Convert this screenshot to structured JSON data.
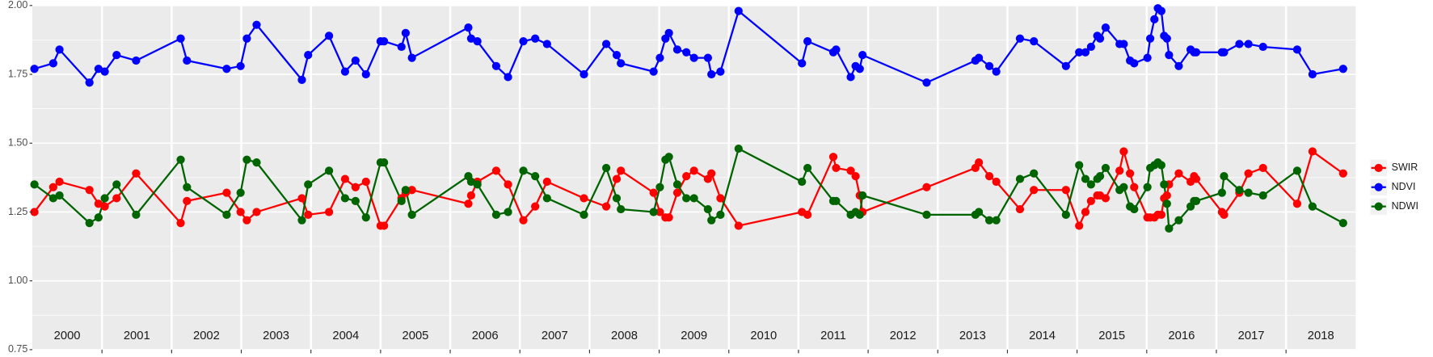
{
  "chart_data": {
    "type": "line",
    "x": [
      2000.03,
      2000.3,
      2000.39,
      2000.82,
      2000.95,
      2001.04,
      2001.21,
      2001.49,
      2002.13,
      2002.22,
      2002.79,
      2002.99,
      2003.08,
      2003.22,
      2003.87,
      2003.96,
      2004.26,
      2004.49,
      2004.64,
      2004.79,
      2005.0,
      2005.05,
      2005.3,
      2005.36,
      2005.45,
      2006.26,
      2006.3,
      2006.39,
      2006.66,
      2006.83,
      2007.05,
      2007.22,
      2007.39,
      2007.92,
      2008.24,
      2008.39,
      2008.45,
      2008.92,
      2009.01,
      2009.09,
      2009.14,
      2009.26,
      2009.39,
      2009.5,
      2009.7,
      2009.75,
      2009.88,
      2010.14,
      2011.05,
      2011.13,
      2011.5,
      2011.54,
      2011.75,
      2011.82,
      2011.88,
      2011.92,
      2012.84,
      2013.54,
      2013.59,
      2013.74,
      2013.84,
      2014.18,
      2014.38,
      2014.84,
      2015.03,
      2015.12,
      2015.2,
      2015.29,
      2015.33,
      2015.41,
      2015.61,
      2015.67,
      2015.76,
      2015.82,
      2016.01,
      2016.05,
      2016.11,
      2016.16,
      2016.21,
      2016.25,
      2016.29,
      2016.32,
      2016.46,
      2016.63,
      2016.68,
      2016.71,
      2017.08,
      2017.11,
      2017.33,
      2017.46,
      2017.67,
      2018.16,
      2018.38,
      2018.82
    ],
    "series": [
      {
        "name": "SWIR",
        "color": "#ff0000",
        "values": [
          1.25,
          1.34,
          1.36,
          1.33,
          1.28,
          1.27,
          1.3,
          1.39,
          1.21,
          1.29,
          1.32,
          1.25,
          1.22,
          1.25,
          1.3,
          1.24,
          1.25,
          1.37,
          1.34,
          1.36,
          1.2,
          1.2,
          1.3,
          1.32,
          1.33,
          1.28,
          1.31,
          1.36,
          1.4,
          1.35,
          1.22,
          1.27,
          1.36,
          1.3,
          1.27,
          1.37,
          1.4,
          1.32,
          1.25,
          1.23,
          1.23,
          1.32,
          1.38,
          1.4,
          1.37,
          1.39,
          1.3,
          1.2,
          1.25,
          1.24,
          1.45,
          1.41,
          1.4,
          1.38,
          1.31,
          1.25,
          1.34,
          1.41,
          1.43,
          1.38,
          1.36,
          1.26,
          1.33,
          1.33,
          1.2,
          1.25,
          1.29,
          1.31,
          1.31,
          1.3,
          1.4,
          1.47,
          1.39,
          1.34,
          1.23,
          1.23,
          1.23,
          1.24,
          1.24,
          1.3,
          1.31,
          1.35,
          1.39,
          1.36,
          1.38,
          1.37,
          1.25,
          1.24,
          1.32,
          1.39,
          1.41,
          1.28,
          1.47,
          1.39
        ]
      },
      {
        "name": "NDVI",
        "color": "#0000ff",
        "values": [
          1.77,
          1.79,
          1.84,
          1.72,
          1.77,
          1.76,
          1.82,
          1.8,
          1.88,
          1.8,
          1.77,
          1.78,
          1.88,
          1.93,
          1.73,
          1.82,
          1.89,
          1.76,
          1.8,
          1.75,
          1.87,
          1.87,
          1.85,
          1.9,
          1.81,
          1.92,
          1.88,
          1.87,
          1.78,
          1.74,
          1.87,
          1.88,
          1.86,
          1.75,
          1.86,
          1.82,
          1.79,
          1.76,
          1.81,
          1.88,
          1.9,
          1.84,
          1.83,
          1.81,
          1.81,
          1.75,
          1.76,
          1.98,
          1.79,
          1.87,
          1.83,
          1.84,
          1.74,
          1.78,
          1.77,
          1.82,
          1.72,
          1.8,
          1.81,
          1.78,
          1.76,
          1.88,
          1.87,
          1.78,
          1.83,
          1.83,
          1.85,
          1.89,
          1.88,
          1.92,
          1.86,
          1.86,
          1.8,
          1.79,
          1.81,
          1.88,
          1.95,
          1.99,
          1.98,
          1.89,
          1.88,
          1.82,
          1.78,
          1.84,
          1.83,
          1.83,
          1.83,
          1.83,
          1.86,
          1.86,
          1.85,
          1.84,
          1.75,
          1.77
        ]
      },
      {
        "name": "NDWI",
        "color": "#006400",
        "values": [
          1.35,
          1.3,
          1.31,
          1.21,
          1.23,
          1.3,
          1.35,
          1.24,
          1.44,
          1.34,
          1.24,
          1.32,
          1.44,
          1.43,
          1.22,
          1.35,
          1.4,
          1.3,
          1.29,
          1.23,
          1.43,
          1.43,
          1.29,
          1.33,
          1.24,
          1.38,
          1.36,
          1.35,
          1.24,
          1.25,
          1.4,
          1.38,
          1.3,
          1.24,
          1.41,
          1.3,
          1.26,
          1.25,
          1.34,
          1.44,
          1.45,
          1.35,
          1.3,
          1.3,
          1.26,
          1.22,
          1.24,
          1.48,
          1.36,
          1.41,
          1.29,
          1.29,
          1.24,
          1.25,
          1.24,
          1.31,
          1.24,
          1.24,
          1.25,
          1.22,
          1.22,
          1.37,
          1.39,
          1.24,
          1.42,
          1.37,
          1.35,
          1.37,
          1.38,
          1.41,
          1.33,
          1.34,
          1.27,
          1.26,
          1.34,
          1.41,
          1.42,
          1.43,
          1.42,
          1.35,
          1.28,
          1.19,
          1.22,
          1.27,
          1.29,
          1.29,
          1.32,
          1.38,
          1.33,
          1.32,
          1.31,
          1.4,
          1.27,
          1.21
        ]
      }
    ],
    "xlim": [
      2000,
      2019
    ],
    "xticks": [
      {
        "value": 2000.5,
        "label": "2000"
      },
      {
        "value": 2001.5,
        "label": "2001"
      },
      {
        "value": 2002.5,
        "label": "2002"
      },
      {
        "value": 2003.5,
        "label": "2003"
      },
      {
        "value": 2004.5,
        "label": "2004"
      },
      {
        "value": 2005.5,
        "label": "2005"
      },
      {
        "value": 2006.5,
        "label": "2006"
      },
      {
        "value": 2007.5,
        "label": "2007"
      },
      {
        "value": 2008.5,
        "label": "2008"
      },
      {
        "value": 2009.5,
        "label": "2009"
      },
      {
        "value": 2010.5,
        "label": "2010"
      },
      {
        "value": 2011.5,
        "label": "2011"
      },
      {
        "value": 2012.5,
        "label": "2012"
      },
      {
        "value": 2013.5,
        "label": "2013"
      },
      {
        "value": 2014.5,
        "label": "2014"
      },
      {
        "value": 2015.5,
        "label": "2015"
      },
      {
        "value": 2016.5,
        "label": "2016"
      },
      {
        "value": 2017.5,
        "label": "2017"
      },
      {
        "value": 2018.5,
        "label": "2018"
      }
    ],
    "ylim": [
      0.75,
      2.0
    ],
    "yticks": [
      {
        "value": 0.75,
        "label": "0.75"
      },
      {
        "value": 1.0,
        "label": "1.00"
      },
      {
        "value": 1.25,
        "label": "1.25"
      },
      {
        "value": 1.5,
        "label": "1.50"
      },
      {
        "value": 1.75,
        "label": "1.75"
      },
      {
        "value": 2.0,
        "label": "2.00"
      }
    ],
    "grid": true,
    "legend": "right"
  }
}
